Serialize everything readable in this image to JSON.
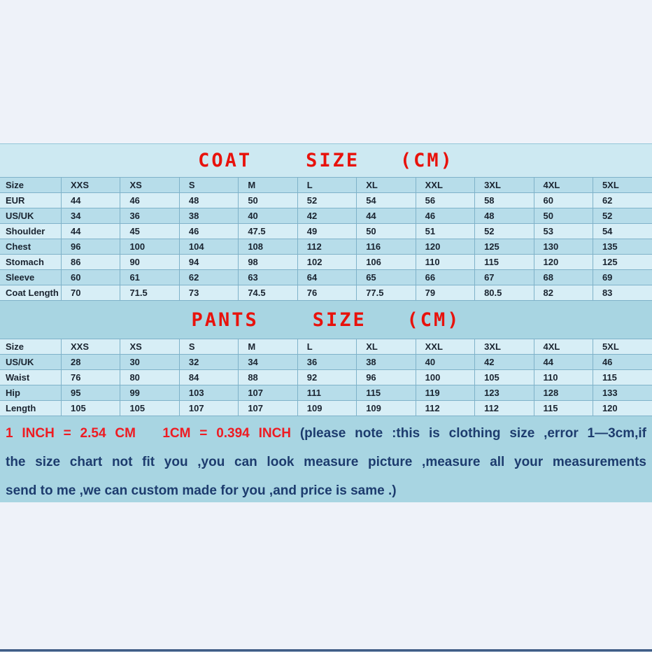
{
  "chart_data": [
    {
      "type": "table",
      "title": "COAT    SIZE   (CM)",
      "unit": "CM",
      "columns": [
        "Size",
        "XXS",
        "XS",
        "S",
        "M",
        "L",
        "XL",
        "XXL",
        "3XL",
        "4XL",
        "5XL"
      ],
      "rows": [
        [
          "Size",
          "XXS",
          "XS",
          "S",
          "M",
          "L",
          "XL",
          "XXL",
          "3XL",
          "4XL",
          "5XL"
        ],
        [
          "EUR",
          "44",
          "46",
          "48",
          "50",
          "52",
          "54",
          "56",
          "58",
          "60",
          "62"
        ],
        [
          "US/UK",
          "34",
          "36",
          "38",
          "40",
          "42",
          "44",
          "46",
          "48",
          "50",
          "52"
        ],
        [
          "Shoulder",
          "44",
          "45",
          "46",
          "47.5",
          "49",
          "50",
          "51",
          "52",
          "53",
          "54"
        ],
        [
          "Chest",
          "96",
          "100",
          "104",
          "108",
          "112",
          "116",
          "120",
          "125",
          "130",
          "135"
        ],
        [
          "Stomach",
          "86",
          "90",
          "94",
          "98",
          "102",
          "106",
          "110",
          "115",
          "120",
          "125"
        ],
        [
          "Sleeve",
          "60",
          "61",
          "62",
          "63",
          "64",
          "65",
          "66",
          "67",
          "68",
          "69"
        ],
        [
          "Coat Length",
          "70",
          "71.5",
          "73",
          "74.5",
          "76",
          "77.5",
          "79",
          "80.5",
          "82",
          "83"
        ]
      ]
    },
    {
      "type": "table",
      "title": "PANTS    SIZE   (CM)",
      "unit": "CM",
      "columns": [
        "Size",
        "XXS",
        "XS",
        "S",
        "M",
        "L",
        "XL",
        "XXL",
        "3XL",
        "4XL",
        "5XL"
      ],
      "rows": [
        [
          "Size",
          "XXS",
          "XS",
          "S",
          "M",
          "L",
          "XL",
          "XXL",
          "3XL",
          "4XL",
          "5XL"
        ],
        [
          "US/UK",
          "28",
          "30",
          "32",
          "34",
          "36",
          "38",
          "40",
          "42",
          "44",
          "46"
        ],
        [
          "Waist",
          "76",
          "80",
          "84",
          "88",
          "92",
          "96",
          "100",
          "105",
          "110",
          "115"
        ],
        [
          "Hip",
          "95",
          "99",
          "103",
          "107",
          "111",
          "115",
          "119",
          "123",
          "128",
          "133"
        ],
        [
          "Length",
          "105",
          "105",
          "107",
          "107",
          "109",
          "109",
          "112",
          "112",
          "115",
          "120"
        ]
      ]
    }
  ],
  "note": {
    "conversion": "1 INCH = 2.54 CM   1CM = 0.394 INCH",
    "line1": "(please note :this is clothing size ,error 1—3cm,if",
    "line2": "the size chart not fit you ,you can look measure picture ,measure all your measurements",
    "line3": "send to me ,we can custom made for you ,and price is same .)"
  },
  "colors": {
    "title_red": "#e8120c",
    "note_red": "#ee1b22",
    "note_blue": "#1d3c6e",
    "coat_banner_bg": "#cde9f2",
    "section_blue_bg": "#a8d5e2",
    "row_light": "#d7eef6",
    "row_medium": "#b7ddea",
    "table_border": "#7fb2c9",
    "cell_text": "#1a2430",
    "page_margin_bg": "#eef2f9",
    "footer_bar_dark": "#3e5b85",
    "footer_bar_light": "#9db1c9"
  }
}
